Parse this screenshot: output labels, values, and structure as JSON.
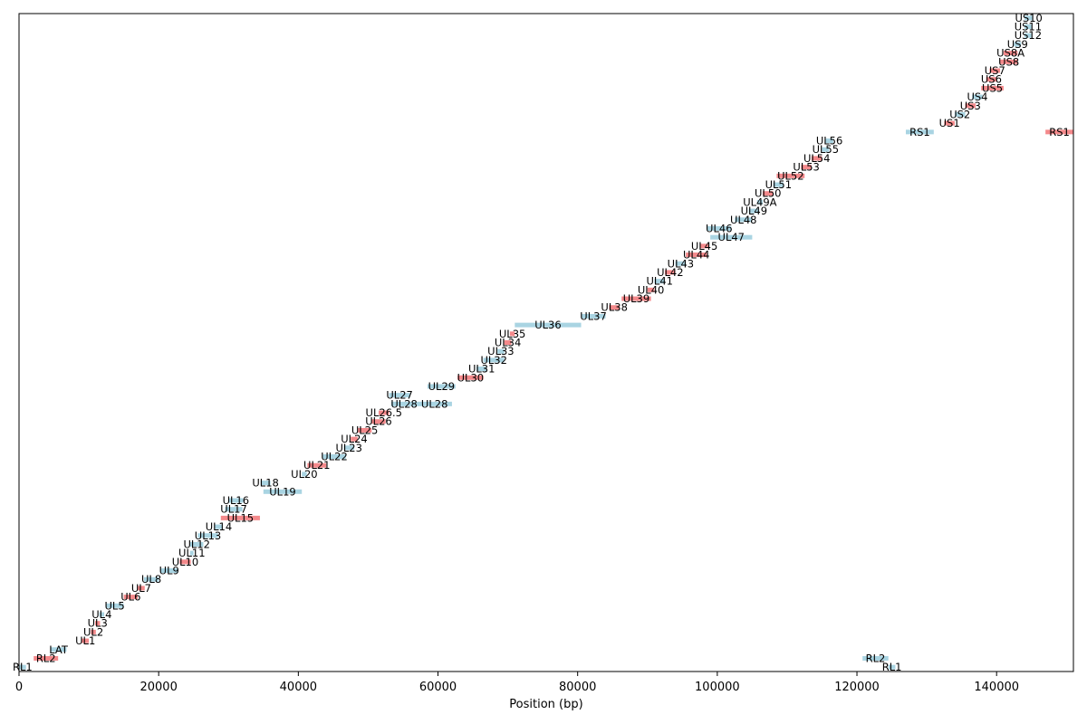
{
  "colors": {
    "plus": "#f4898b",
    "minus": "#a9d4e2",
    "axis": "#000000"
  },
  "chart_data": {
    "type": "gantt",
    "xlabel": "Position (bp)",
    "xlim": [
      0,
      151000
    ],
    "ylim": [
      -0.5,
      73.5
    ],
    "xticks": [
      0,
      20000,
      40000,
      60000,
      80000,
      100000,
      120000,
      140000
    ],
    "xtick_labels": [
      "0",
      "20000",
      "40000",
      "60000",
      "80000",
      "100000",
      "120000",
      "140000"
    ],
    "genes": [
      {
        "name": "RL1",
        "row": 0,
        "start": 0,
        "end": 1000,
        "strand": "-"
      },
      {
        "name": "RL2",
        "row": 1,
        "start": 2100,
        "end": 5600,
        "strand": "+"
      },
      {
        "name": "LAT",
        "row": 2,
        "start": 4500,
        "end": 6800,
        "strand": "-"
      },
      {
        "name": "UL1",
        "row": 3,
        "start": 9000,
        "end": 10000,
        "strand": "+"
      },
      {
        "name": "UL2",
        "row": 4,
        "start": 10300,
        "end": 11000,
        "strand": "+"
      },
      {
        "name": "UL3",
        "row": 5,
        "start": 10900,
        "end": 11600,
        "strand": "+"
      },
      {
        "name": "UL4",
        "row": 6,
        "start": 11500,
        "end": 12200,
        "strand": "-"
      },
      {
        "name": "UL5",
        "row": 7,
        "start": 12400,
        "end": 15000,
        "strand": "-"
      },
      {
        "name": "UL6",
        "row": 8,
        "start": 15000,
        "end": 17000,
        "strand": "+"
      },
      {
        "name": "UL7",
        "row": 9,
        "start": 17000,
        "end": 18000,
        "strand": "+"
      },
      {
        "name": "UL8",
        "row": 10,
        "start": 17900,
        "end": 20000,
        "strand": "-"
      },
      {
        "name": "UL9",
        "row": 11,
        "start": 20200,
        "end": 22800,
        "strand": "-"
      },
      {
        "name": "UL10",
        "row": 12,
        "start": 23000,
        "end": 24600,
        "strand": "+"
      },
      {
        "name": "UL11",
        "row": 13,
        "start": 24500,
        "end": 25000,
        "strand": "-"
      },
      {
        "name": "UL12",
        "row": 14,
        "start": 24500,
        "end": 26400,
        "strand": "-"
      },
      {
        "name": "UL13",
        "row": 15,
        "start": 25600,
        "end": 28500,
        "strand": "-"
      },
      {
        "name": "UL14",
        "row": 16,
        "start": 28000,
        "end": 29200,
        "strand": "-"
      },
      {
        "name": "UL15",
        "row": 17,
        "start": 28900,
        "end": 34500,
        "strand": "+"
      },
      {
        "name": "UL17",
        "row": 18,
        "start": 29500,
        "end": 32000,
        "strand": "-"
      },
      {
        "name": "UL16",
        "row": 19,
        "start": 30000,
        "end": 32100,
        "strand": "-"
      },
      {
        "name": "UL19",
        "row": 20,
        "start": 35000,
        "end": 40500,
        "strand": "-"
      },
      {
        "name": "UL18",
        "row": 21,
        "start": 34600,
        "end": 36000,
        "strand": "-"
      },
      {
        "name": "UL20",
        "row": 22,
        "start": 40500,
        "end": 41200,
        "strand": "-"
      },
      {
        "name": "UL21",
        "row": 23,
        "start": 41300,
        "end": 44000,
        "strand": "+"
      },
      {
        "name": "UL22",
        "row": 24,
        "start": 43500,
        "end": 46800,
        "strand": "-"
      },
      {
        "name": "UL23",
        "row": 25,
        "start": 46500,
        "end": 48000,
        "strand": "-"
      },
      {
        "name": "UL24",
        "row": 26,
        "start": 47500,
        "end": 48500,
        "strand": "+"
      },
      {
        "name": "UL25",
        "row": 27,
        "start": 48500,
        "end": 50500,
        "strand": "+"
      },
      {
        "name": "UL26",
        "row": 28,
        "start": 50500,
        "end": 52500,
        "strand": "+"
      },
      {
        "name": "UL26.5",
        "row": 29,
        "start": 51500,
        "end": 53000,
        "strand": "+"
      },
      {
        "name": "UL28",
        "row": 30,
        "start": 53300,
        "end": 57000,
        "strand": "-"
      },
      {
        "name": "UL28",
        "row": 30,
        "start": 57000,
        "end": 62000,
        "strand": "-"
      },
      {
        "name": "UL27",
        "row": 31,
        "start": 53000,
        "end": 56000,
        "strand": "-"
      },
      {
        "name": "UL29",
        "row": 32,
        "start": 58500,
        "end": 62500,
        "strand": "-"
      },
      {
        "name": "UL30",
        "row": 33,
        "start": 62800,
        "end": 66500,
        "strand": "+"
      },
      {
        "name": "UL31",
        "row": 34,
        "start": 65500,
        "end": 67000,
        "strand": "-"
      },
      {
        "name": "UL32",
        "row": 35,
        "start": 66500,
        "end": 69500,
        "strand": "-"
      },
      {
        "name": "UL33",
        "row": 36,
        "start": 68500,
        "end": 69500,
        "strand": "-"
      },
      {
        "name": "UL34",
        "row": 37,
        "start": 69500,
        "end": 70500,
        "strand": "+"
      },
      {
        "name": "UL35",
        "row": 38,
        "start": 70300,
        "end": 71000,
        "strand": "+"
      },
      {
        "name": "UL36",
        "row": 39,
        "start": 71000,
        "end": 80500,
        "strand": "-"
      },
      {
        "name": "UL37",
        "row": 40,
        "start": 80500,
        "end": 84000,
        "strand": "-"
      },
      {
        "name": "UL38",
        "row": 41,
        "start": 84500,
        "end": 86000,
        "strand": "+"
      },
      {
        "name": "UL39",
        "row": 42,
        "start": 86300,
        "end": 90500,
        "strand": "+"
      },
      {
        "name": "UL40",
        "row": 43,
        "start": 90000,
        "end": 91000,
        "strand": "+"
      },
      {
        "name": "UL41",
        "row": 44,
        "start": 91000,
        "end": 92500,
        "strand": "-"
      },
      {
        "name": "UL42",
        "row": 45,
        "start": 92500,
        "end": 94000,
        "strand": "+"
      },
      {
        "name": "UL43",
        "row": 46,
        "start": 94000,
        "end": 95500,
        "strand": "-"
      },
      {
        "name": "UL44",
        "row": 47,
        "start": 95500,
        "end": 98500,
        "strand": "+"
      },
      {
        "name": "UL45",
        "row": 48,
        "start": 97500,
        "end": 98800,
        "strand": "+"
      },
      {
        "name": "UL47",
        "row": 49,
        "start": 99000,
        "end": 105000,
        "strand": "-"
      },
      {
        "name": "UL46",
        "row": 50,
        "start": 98500,
        "end": 102000,
        "strand": "-"
      },
      {
        "name": "UL48",
        "row": 51,
        "start": 102500,
        "end": 105000,
        "strand": "-"
      },
      {
        "name": "UL49",
        "row": 52,
        "start": 104500,
        "end": 106000,
        "strand": "-"
      },
      {
        "name": "UL49A",
        "row": 53,
        "start": 105700,
        "end": 106500,
        "strand": "-"
      },
      {
        "name": "UL50",
        "row": 54,
        "start": 106500,
        "end": 108000,
        "strand": "+"
      },
      {
        "name": "UL51",
        "row": 55,
        "start": 108000,
        "end": 109500,
        "strand": "-"
      },
      {
        "name": "UL52",
        "row": 56,
        "start": 108500,
        "end": 112500,
        "strand": "+"
      },
      {
        "name": "UL53",
        "row": 57,
        "start": 112000,
        "end": 113500,
        "strand": "+"
      },
      {
        "name": "UL54",
        "row": 58,
        "start": 113500,
        "end": 115000,
        "strand": "+"
      },
      {
        "name": "UL55",
        "row": 59,
        "start": 115000,
        "end": 116000,
        "strand": "-"
      },
      {
        "name": "UL56",
        "row": 60,
        "start": 115500,
        "end": 116600,
        "strand": "-"
      },
      {
        "name": "RL2",
        "row": 1,
        "start": 120800,
        "end": 124500,
        "strand": "-"
      },
      {
        "name": "RL1",
        "row": 0,
        "start": 124500,
        "end": 125500,
        "strand": "-"
      },
      {
        "name": "RS1",
        "row": 61,
        "start": 127000,
        "end": 131000,
        "strand": "-"
      },
      {
        "name": "RS1",
        "row": 61,
        "start": 147000,
        "end": 151000,
        "strand": "+"
      },
      {
        "name": "US1",
        "row": 62,
        "start": 132500,
        "end": 134000,
        "strand": "+"
      },
      {
        "name": "US2",
        "row": 63,
        "start": 134000,
        "end": 135500,
        "strand": "-"
      },
      {
        "name": "US3",
        "row": 64,
        "start": 135500,
        "end": 137000,
        "strand": "+"
      },
      {
        "name": "US4",
        "row": 65,
        "start": 136500,
        "end": 138000,
        "strand": "-"
      },
      {
        "name": "US5",
        "row": 66,
        "start": 137800,
        "end": 141000,
        "strand": "+"
      },
      {
        "name": "US6",
        "row": 67,
        "start": 138500,
        "end": 140000,
        "strand": "+"
      },
      {
        "name": "US7",
        "row": 68,
        "start": 139000,
        "end": 140500,
        "strand": "+"
      },
      {
        "name": "US8",
        "row": 69,
        "start": 140500,
        "end": 143000,
        "strand": "+"
      },
      {
        "name": "US8A",
        "row": 70,
        "start": 141000,
        "end": 143000,
        "strand": "+"
      },
      {
        "name": "US9",
        "row": 71,
        "start": 142500,
        "end": 143500,
        "strand": "-"
      },
      {
        "name": "US12",
        "row": 72,
        "start": 144000,
        "end": 145000,
        "strand": "-"
      },
      {
        "name": "US11",
        "row": 73,
        "start": 144000,
        "end": 145000,
        "strand": "-"
      },
      {
        "name": "US10",
        "row": 74,
        "start": 144000,
        "end": 145200,
        "strand": "-"
      }
    ]
  }
}
